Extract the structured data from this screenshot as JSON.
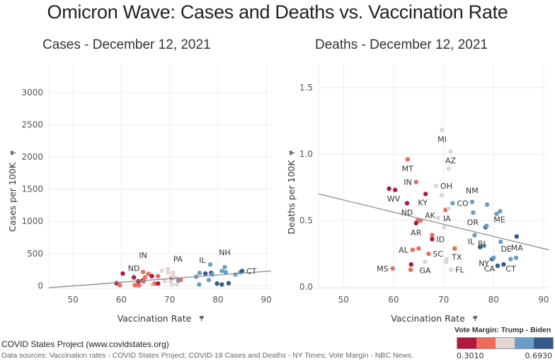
{
  "title": "Omicron Wave: Cases and Deaths vs. Vaccination Rate",
  "footer": {
    "title": "COVID States Project (www.covidstates.org)",
    "sources": "Data sources: Vaccination rates - COVID States Project; COVID-19 Cases and Deaths - NY Times; Vote Margin - NBC News."
  },
  "legend": {
    "title": "Vote Margin: Trump - Biden",
    "min_label": "0.3010",
    "max_label": "0.6930",
    "colors": [
      "#b0193f",
      "#ef6b5a",
      "#e0d6d4",
      "#6b9ec7",
      "#335a8a"
    ]
  },
  "chart_data": [
    {
      "type": "scatter",
      "title": "Cases - December 12, 2021",
      "xlabel": "Vaccination Rate",
      "ylabel": "Cases per 100K",
      "xlim": [
        45,
        91
      ],
      "ylim": [
        -40,
        3450
      ],
      "xticks": [
        50,
        60,
        70,
        80,
        90
      ],
      "yticks": [
        0,
        500,
        1000,
        1500,
        2000,
        2500,
        3000
      ],
      "grid": true,
      "trendline": {
        "x": [
          45,
          91
        ],
        "y": [
          -30,
          230
        ]
      },
      "points": [
        {
          "x": 59.0,
          "y": 40,
          "c": 0
        },
        {
          "x": 59.7,
          "y": 10,
          "c": 1
        },
        {
          "x": 60.3,
          "y": 190,
          "c": 0
        },
        {
          "x": 62.6,
          "y": 130,
          "c": 0,
          "label": "ND"
        },
        {
          "x": 62.8,
          "y": 10,
          "c": 1
        },
        {
          "x": 63.3,
          "y": 10,
          "c": 1
        },
        {
          "x": 63.7,
          "y": 10,
          "c": 1
        },
        {
          "x": 63.5,
          "y": 70,
          "c": 0
        },
        {
          "x": 64.4,
          "y": 80,
          "c": 0
        },
        {
          "x": 64.5,
          "y": 215,
          "c": 1,
          "label": "IN"
        },
        {
          "x": 64.6,
          "y": 70,
          "c": 1
        },
        {
          "x": 64.9,
          "y": 130,
          "c": 1
        },
        {
          "x": 65.6,
          "y": 185,
          "c": 1
        },
        {
          "x": 66.3,
          "y": 150,
          "c": 0
        },
        {
          "x": 66.4,
          "y": 20,
          "c": 2
        },
        {
          "x": 66.9,
          "y": 35,
          "c": 1
        },
        {
          "x": 67.6,
          "y": 150,
          "c": 1
        },
        {
          "x": 67.6,
          "y": 35,
          "c": 0
        },
        {
          "x": 68.4,
          "y": 235,
          "c": 2
        },
        {
          "x": 69.0,
          "y": 70,
          "c": 2
        },
        {
          "x": 69.6,
          "y": 260,
          "c": 2
        },
        {
          "x": 69.7,
          "y": 210,
          "c": 2
        },
        {
          "x": 70.2,
          "y": 70,
          "c": 2
        },
        {
          "x": 70.4,
          "y": 120,
          "c": 1
        },
        {
          "x": 70.7,
          "y": 205,
          "c": 2,
          "label": "PA"
        },
        {
          "x": 70.7,
          "y": 150,
          "c": 2
        },
        {
          "x": 70.5,
          "y": 20,
          "c": 2
        },
        {
          "x": 71.4,
          "y": 120,
          "c": 2
        },
        {
          "x": 71.5,
          "y": 20,
          "c": 2
        },
        {
          "x": 71.8,
          "y": 80,
          "c": 3
        },
        {
          "x": 72.3,
          "y": 90,
          "c": 1
        },
        {
          "x": 75.5,
          "y": 140,
          "c": 3
        },
        {
          "x": 76.2,
          "y": 200,
          "c": 3,
          "label": "IL"
        },
        {
          "x": 76.1,
          "y": 20,
          "c": 3
        },
        {
          "x": 77.4,
          "y": 190,
          "c": 4
        },
        {
          "x": 78.1,
          "y": 90,
          "c": 3
        },
        {
          "x": 78.4,
          "y": 330,
          "c": 3
        },
        {
          "x": 78.6,
          "y": 200,
          "c": 4
        },
        {
          "x": 78.8,
          "y": 175,
          "c": 3
        },
        {
          "x": 79.8,
          "y": 35,
          "c": 4
        },
        {
          "x": 80.8,
          "y": 230,
          "c": 3
        },
        {
          "x": 80.8,
          "y": 20,
          "c": 4
        },
        {
          "x": 81.4,
          "y": 290,
          "c": 3,
          "label": "NH"
        },
        {
          "x": 81.6,
          "y": 210,
          "c": 3
        },
        {
          "x": 82.2,
          "y": 40,
          "c": 4
        },
        {
          "x": 83.6,
          "y": 175,
          "c": 3
        },
        {
          "x": 84.6,
          "y": 210,
          "c": 3
        },
        {
          "x": 85.0,
          "y": 230,
          "c": 4,
          "label": "CT"
        }
      ]
    },
    {
      "type": "scatter",
      "title": "Deaths - December 12, 2021",
      "xlabel": "Vaccination Rate",
      "ylabel": "Deaths per 100K",
      "xlim": [
        45,
        91
      ],
      "ylim": [
        -0.01,
        1.68
      ],
      "xticks": [
        50,
        60,
        70,
        80,
        90
      ],
      "yticks": [
        0.0,
        0.5,
        1.0,
        1.5
      ],
      "grid": true,
      "trendline": {
        "x": [
          45,
          91
        ],
        "y": [
          0.7,
          0.28
        ]
      },
      "points": [
        {
          "x": 69.7,
          "y": 1.18,
          "c": 2,
          "label": "MI"
        },
        {
          "x": 71.4,
          "y": 1.02,
          "c": 2,
          "label": "AZ"
        },
        {
          "x": 71.0,
          "y": 0.89,
          "c": 2
        },
        {
          "x": 62.8,
          "y": 0.96,
          "c": 1,
          "label": "MT"
        },
        {
          "x": 64.5,
          "y": 0.79,
          "c": 1,
          "label": "IN"
        },
        {
          "x": 68.5,
          "y": 0.76,
          "c": 2,
          "label": "OH"
        },
        {
          "x": 69.6,
          "y": 0.69,
          "c": 2
        },
        {
          "x": 59.1,
          "y": 0.74,
          "c": 0
        },
        {
          "x": 60.3,
          "y": 0.73,
          "c": 0,
          "label": "WV"
        },
        {
          "x": 66.4,
          "y": 0.7,
          "c": 0,
          "label": "KY"
        },
        {
          "x": 62.7,
          "y": 0.63,
          "c": 0,
          "label": "ND"
        },
        {
          "x": 71.8,
          "y": 0.63,
          "c": 3,
          "label": "CO"
        },
        {
          "x": 70.4,
          "y": 0.58,
          "c": 1,
          "label": "IA"
        },
        {
          "x": 71.0,
          "y": 0.59,
          "c": 2
        },
        {
          "x": 68.9,
          "y": 0.52,
          "c": 2,
          "label": "AK"
        },
        {
          "x": 64.8,
          "y": 0.5,
          "c": 1
        },
        {
          "x": 65.4,
          "y": 0.5,
          "c": 1
        },
        {
          "x": 64.5,
          "y": 0.48,
          "c": 0,
          "label": "AR"
        },
        {
          "x": 70.1,
          "y": 0.45,
          "c": 2
        },
        {
          "x": 67.7,
          "y": 0.39,
          "c": 1
        },
        {
          "x": 67.7,
          "y": 0.36,
          "c": 0,
          "label": "ID"
        },
        {
          "x": 63.8,
          "y": 0.28,
          "c": 1,
          "label": "AL"
        },
        {
          "x": 65.0,
          "y": 0.29,
          "c": 1
        },
        {
          "x": 67.0,
          "y": 0.25,
          "c": 1,
          "label": "SC"
        },
        {
          "x": 72.2,
          "y": 0.29,
          "c": 1,
          "label": "TX"
        },
        {
          "x": 70.6,
          "y": 0.21,
          "c": 2
        },
        {
          "x": 70.5,
          "y": 0.19,
          "c": 2
        },
        {
          "x": 66.3,
          "y": 0.19,
          "c": 2,
          "label": "GA"
        },
        {
          "x": 63.5,
          "y": 0.17,
          "c": 0
        },
        {
          "x": 63.4,
          "y": 0.13,
          "c": 1
        },
        {
          "x": 59.8,
          "y": 0.14,
          "c": 1,
          "label": "MS"
        },
        {
          "x": 71.5,
          "y": 0.13,
          "c": 2,
          "label": "FL"
        },
        {
          "x": 75.7,
          "y": 0.64,
          "c": 3,
          "label": "NM"
        },
        {
          "x": 78.7,
          "y": 0.62,
          "c": 3
        },
        {
          "x": 75.9,
          "y": 0.56,
          "c": 3
        },
        {
          "x": 80.6,
          "y": 0.55,
          "c": 3
        },
        {
          "x": 81.3,
          "y": 0.57,
          "c": 3
        },
        {
          "x": 78.4,
          "y": 0.45,
          "c": 4,
          "label": "OR"
        },
        {
          "x": 78.6,
          "y": 0.46,
          "c": 3,
          "label": "ME"
        },
        {
          "x": 76.2,
          "y": 0.39,
          "c": 3,
          "label": "RI"
        },
        {
          "x": 84.6,
          "y": 0.38,
          "c": 4,
          "label": "MA"
        },
        {
          "x": 77.3,
          "y": 0.3,
          "c": 4,
          "label": "IL"
        },
        {
          "x": 78.1,
          "y": 0.31,
          "c": 3
        },
        {
          "x": 81.4,
          "y": 0.34,
          "c": 3,
          "label": "DE"
        },
        {
          "x": 83.4,
          "y": 0.21,
          "c": 3
        },
        {
          "x": 84.5,
          "y": 0.22,
          "c": 3
        },
        {
          "x": 79.7,
          "y": 0.21,
          "c": 4,
          "label": "NY"
        },
        {
          "x": 80.0,
          "y": 0.22,
          "c": 3
        },
        {
          "x": 80.8,
          "y": 0.16,
          "c": 4,
          "label": "CA"
        },
        {
          "x": 82.0,
          "y": 0.17,
          "c": 4,
          "label": "CT"
        }
      ]
    }
  ]
}
